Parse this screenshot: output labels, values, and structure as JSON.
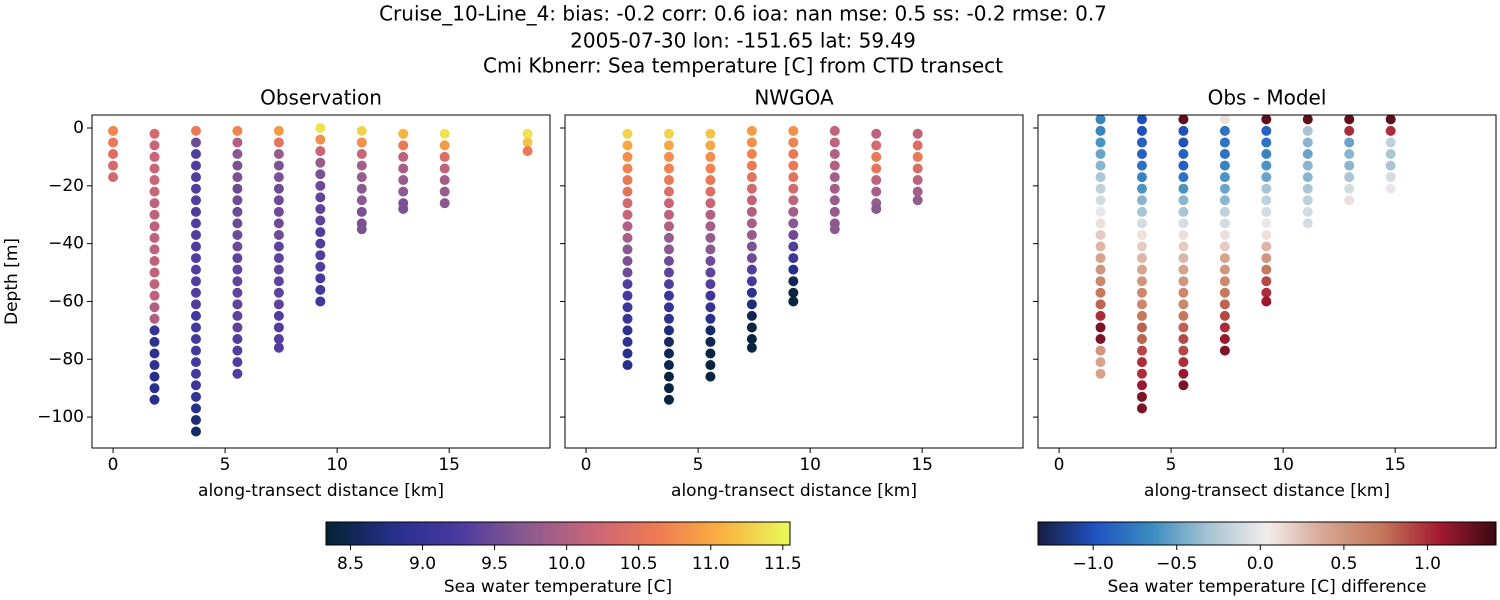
{
  "title": [
    "Cruise_10-Line_4: bias: -0.2  corr: 0.6  ioa: nan  mse: 0.5  ss: -0.2  rmse: 0.7",
    "2005-07-30 lon: -151.65 lat: 59.49",
    "Cmi Kbnerr: Sea temperature [C] from CTD transect"
  ],
  "chart_data": [
    {
      "type": "scatter",
      "title": "Observation",
      "xlabel": "along-transect distance [km]",
      "ylabel": "Depth [m]",
      "cmap": "thermal",
      "xlim": [
        -0.94,
        19.5
      ],
      "xticks": [
        0,
        5,
        10,
        15
      ],
      "ylim": [
        -110.7,
        4.5
      ],
      "yticks": [
        0,
        {
          "value": -20,
          "label": "−20"
        },
        {
          "value": -40,
          "label": "−40"
        },
        {
          "value": -60,
          "label": "−60"
        },
        {
          "value": -80,
          "label": "−80"
        },
        {
          "value": -100,
          "label": "−100"
        }
      ],
      "casts": [
        {
          "x": 0,
          "depth": [
            -1,
            -5,
            -9,
            -13,
            -17
          ],
          "values": [
            10.7,
            10.6,
            10.4,
            10.3,
            10.3
          ]
        },
        {
          "x": 1.85,
          "depth": [
            -2,
            -6,
            -10,
            -14,
            -18,
            -22,
            -26,
            -30,
            -34,
            -38,
            -42,
            -46,
            -50,
            -54,
            -58,
            -62,
            -66,
            -70,
            -74,
            -78,
            -82,
            -86,
            -90,
            -94
          ],
          "values": [
            10.3,
            10.2,
            10.2,
            10.2,
            10.2,
            10.2,
            10.1,
            10.1,
            10.1,
            10.1,
            10.1,
            10.1,
            10.1,
            10.1,
            10.1,
            10.0,
            10.0,
            9.0,
            8.9,
            8.9,
            8.9,
            8.8,
            8.8,
            8.8
          ]
        },
        {
          "x": 3.7,
          "depth": [
            -1,
            -5,
            -9,
            -13,
            -17,
            -21,
            -25,
            -29,
            -33,
            -37,
            -41,
            -45,
            -49,
            -53,
            -57,
            -61,
            -65,
            -69,
            -73,
            -77,
            -81,
            -85,
            -89,
            -93,
            -97,
            -101,
            -105
          ],
          "values": [
            10.6,
            9.5,
            9.3,
            9.3,
            9.3,
            9.3,
            9.3,
            9.3,
            9.3,
            9.3,
            9.3,
            9.3,
            9.3,
            9.3,
            9.3,
            9.3,
            9.2,
            9.2,
            9.2,
            9.2,
            9.2,
            9.2,
            9.1,
            9.0,
            8.8,
            8.7,
            8.6
          ]
        },
        {
          "x": 5.55,
          "depth": [
            -1,
            -5,
            -9,
            -13,
            -17,
            -21,
            -25,
            -29,
            -33,
            -37,
            -41,
            -45,
            -49,
            -53,
            -57,
            -61,
            -65,
            -69,
            -73,
            -77,
            -81,
            -85
          ],
          "values": [
            10.7,
            10.0,
            9.7,
            9.6,
            9.6,
            9.5,
            9.5,
            9.5,
            9.5,
            9.5,
            9.5,
            9.4,
            9.4,
            9.4,
            9.4,
            9.4,
            9.4,
            9.4,
            9.3,
            9.3,
            9.3,
            9.3
          ]
        },
        {
          "x": 7.4,
          "depth": [
            -1,
            -5,
            -9,
            -13,
            -17,
            -21,
            -25,
            -29,
            -33,
            -37,
            -41,
            -45,
            -49,
            -53,
            -57,
            -61,
            -65,
            -69,
            -73,
            -76
          ],
          "values": [
            10.9,
            10.5,
            9.8,
            9.6,
            9.6,
            9.5,
            9.5,
            9.5,
            9.5,
            9.5,
            9.4,
            9.4,
            9.4,
            9.4,
            9.4,
            9.4,
            9.3,
            9.3,
            9.3,
            9.3
          ]
        },
        {
          "x": 9.25,
          "depth": [
            0,
            -4,
            -8,
            -12,
            -16,
            -20,
            -24,
            -28,
            -32,
            -36,
            -40,
            -44,
            -48,
            -52,
            -56,
            -60
          ],
          "values": [
            11.4,
            10.8,
            10.2,
            9.8,
            9.6,
            9.5,
            9.4,
            9.4,
            9.4,
            9.3,
            9.3,
            9.3,
            9.3,
            9.2,
            9.2,
            9.1
          ]
        },
        {
          "x": 11.1,
          "depth": [
            -1,
            -5,
            -9,
            -13,
            -17,
            -21,
            -25,
            -29,
            -33,
            -35
          ],
          "values": [
            11.3,
            10.8,
            10.2,
            9.9,
            9.8,
            9.7,
            9.7,
            9.6,
            9.6,
            9.6
          ]
        },
        {
          "x": 12.95,
          "depth": [
            -2,
            -6,
            -10,
            -14,
            -18,
            -22,
            -26,
            -28
          ],
          "values": [
            11.1,
            10.6,
            10.1,
            9.9,
            9.8,
            9.7,
            9.6,
            9.6
          ]
        },
        {
          "x": 14.8,
          "depth": [
            -2,
            -6,
            -10,
            -14,
            -18,
            -22,
            -26
          ],
          "values": [
            11.4,
            10.9,
            10.4,
            10.1,
            9.9,
            9.8,
            9.7
          ]
        },
        {
          "x": 18.5,
          "depth": [
            -2,
            -5,
            -8
          ],
          "values": [
            11.4,
            11.2,
            10.6
          ]
        }
      ]
    },
    {
      "type": "scatter",
      "title": "NWGOA",
      "xlabel": "along-transect distance [km]",
      "cmap": "thermal",
      "xlim": [
        -0.94,
        19.5
      ],
      "xticks": [
        0,
        5,
        10,
        15
      ],
      "ylim": [
        -110.7,
        4.5
      ],
      "casts": [
        {
          "x": 1.85,
          "depth": [
            -2,
            -6,
            -10,
            -14,
            -18,
            -22,
            -26,
            -30,
            -34,
            -38,
            -42,
            -46,
            -50,
            -54,
            -58,
            -62,
            -66,
            -70,
            -74,
            -78,
            -82
          ],
          "values": [
            11.3,
            11.0,
            10.8,
            10.7,
            10.6,
            10.5,
            10.3,
            10.2,
            10.0,
            9.9,
            9.7,
            9.6,
            9.5,
            9.3,
            9.2,
            9.1,
            9.0,
            8.9,
            8.9,
            8.8,
            8.8
          ]
        },
        {
          "x": 3.7,
          "depth": [
            -2,
            -6,
            -10,
            -14,
            -18,
            -22,
            -26,
            -30,
            -34,
            -38,
            -42,
            -46,
            -50,
            -54,
            -58,
            -62,
            -66,
            -70,
            -74,
            -78,
            -82,
            -86,
            -90,
            -94
          ],
          "values": [
            11.3,
            11.0,
            10.8,
            10.7,
            10.6,
            10.4,
            10.2,
            10.1,
            10.0,
            9.8,
            9.7,
            9.5,
            9.4,
            9.3,
            9.1,
            9.0,
            8.9,
            8.7,
            8.6,
            8.5,
            8.5,
            8.4,
            8.4,
            8.4
          ]
        },
        {
          "x": 5.55,
          "depth": [
            -2,
            -6,
            -10,
            -14,
            -18,
            -22,
            -26,
            -30,
            -34,
            -38,
            -42,
            -46,
            -50,
            -54,
            -58,
            -62,
            -66,
            -70,
            -74,
            -78,
            -82,
            -86
          ],
          "values": [
            11.2,
            11.0,
            10.8,
            10.7,
            10.6,
            10.4,
            10.2,
            10.0,
            9.9,
            9.8,
            9.7,
            9.5,
            9.4,
            9.3,
            9.1,
            9.0,
            8.8,
            8.6,
            8.5,
            8.4,
            8.4,
            8.4
          ]
        },
        {
          "x": 7.4,
          "depth": [
            -1,
            -5,
            -9,
            -13,
            -17,
            -21,
            -25,
            -29,
            -33,
            -37,
            -41,
            -45,
            -49,
            -53,
            -57,
            -61,
            -65,
            -69,
            -73,
            -76
          ],
          "values": [
            10.9,
            10.8,
            10.7,
            10.6,
            10.5,
            10.3,
            10.1,
            10.0,
            9.9,
            9.8,
            9.6,
            9.5,
            9.3,
            9.2,
            8.9,
            8.7,
            8.5,
            8.4,
            8.4,
            8.4
          ]
        },
        {
          "x": 9.25,
          "depth": [
            -1,
            -5,
            -9,
            -13,
            -17,
            -21,
            -25,
            -29,
            -33,
            -37,
            -41,
            -45,
            -49,
            -53,
            -57,
            -60
          ],
          "values": [
            10.8,
            10.7,
            10.6,
            10.6,
            10.5,
            10.3,
            10.1,
            9.9,
            9.7,
            9.5,
            9.3,
            9.1,
            8.8,
            8.5,
            8.4,
            8.4
          ]
        },
        {
          "x": 11.1,
          "depth": [
            -1,
            -5,
            -9,
            -13,
            -17,
            -21,
            -25,
            -29,
            -33,
            -35
          ],
          "values": [
            10.1,
            10.1,
            10.0,
            10.0,
            9.9,
            9.9,
            9.8,
            9.8,
            9.7,
            9.7
          ]
        },
        {
          "x": 12.95,
          "depth": [
            -2,
            -6,
            -10,
            -14,
            -18,
            -22,
            -26,
            -28
          ],
          "values": [
            10.1,
            10.3,
            10.6,
            10.5,
            10.1,
            9.9,
            9.8,
            9.7
          ]
        },
        {
          "x": 14.8,
          "depth": [
            -2,
            -6,
            -10,
            -14,
            -18,
            -22,
            -25
          ],
          "values": [
            10.1,
            10.4,
            10.6,
            10.4,
            10.1,
            9.9,
            9.8
          ]
        }
      ]
    },
    {
      "type": "scatter",
      "title": "Obs - Model",
      "xlabel": "along-transect distance [km]",
      "cmap": "balance",
      "xlim": [
        -0.94,
        19.5
      ],
      "xticks": [
        0,
        5,
        10,
        15
      ],
      "ylim": [
        -110.7,
        4.5
      ],
      "casts": [
        {
          "x": 1.85,
          "depth": [
            3,
            -1,
            -5,
            -9,
            -13,
            -17,
            -21,
            -25,
            -29,
            -33,
            -37,
            -41,
            -45,
            -49,
            -53,
            -57,
            -61,
            -65,
            -69,
            -73,
            -77,
            -81,
            -85
          ],
          "values": [
            -0.7,
            -0.7,
            -0.6,
            -0.5,
            -0.4,
            -0.3,
            -0.2,
            -0.1,
            0.0,
            0.1,
            0.2,
            0.3,
            0.4,
            0.5,
            0.6,
            0.7,
            0.8,
            1.0,
            1.2,
            1.2,
            0.5,
            0.4,
            0.4
          ]
        },
        {
          "x": 3.7,
          "depth": [
            3,
            -1,
            -5,
            -9,
            -13,
            -17,
            -21,
            -25,
            -29,
            -33,
            -37,
            -41,
            -45,
            -49,
            -53,
            -57,
            -61,
            -65,
            -69,
            -73,
            -77,
            -81,
            -85,
            -89,
            -93,
            -97
          ],
          "values": [
            -1.0,
            -1.0,
            -0.9,
            -0.9,
            -0.8,
            -0.7,
            -0.6,
            -0.4,
            -0.3,
            -0.1,
            0.1,
            0.2,
            0.3,
            0.4,
            0.5,
            0.6,
            0.6,
            0.7,
            0.8,
            0.8,
            0.9,
            1.0,
            1.0,
            1.1,
            1.2,
            1.2
          ]
        },
        {
          "x": 5.55,
          "depth": [
            3,
            -1,
            -5,
            -9,
            -13,
            -17,
            -21,
            -25,
            -29,
            -33,
            -37,
            -41,
            -45,
            -49,
            -53,
            -57,
            -61,
            -65,
            -69,
            -73,
            -77,
            -81,
            -85,
            -89
          ],
          "values": [
            1.3,
            -1.0,
            -1.0,
            -0.9,
            -0.9,
            -0.8,
            -0.6,
            -0.4,
            -0.3,
            -0.1,
            0.1,
            0.2,
            0.3,
            0.4,
            0.5,
            0.6,
            0.6,
            0.7,
            0.8,
            0.9,
            0.9,
            1.0,
            1.1,
            1.2
          ]
        },
        {
          "x": 7.4,
          "depth": [
            3,
            -1,
            -5,
            -9,
            -13,
            -17,
            -21,
            -25,
            -29,
            -33,
            -37,
            -41,
            -45,
            -49,
            -53,
            -57,
            -61,
            -65,
            -69,
            -73,
            -77
          ],
          "values": [
            0.1,
            -0.8,
            -0.8,
            -0.8,
            -0.7,
            -0.6,
            -0.5,
            -0.4,
            -0.2,
            -0.1,
            0.1,
            0.2,
            0.4,
            0.5,
            0.6,
            0.7,
            0.8,
            0.9,
            1.0,
            1.1,
            1.2
          ]
        },
        {
          "x": 9.25,
          "depth": [
            3,
            -1,
            -5,
            -9,
            -13,
            -17,
            -21,
            -25,
            -29,
            -33,
            -37,
            -41,
            -45,
            -49,
            -53,
            -57,
            -60
          ],
          "values": [
            1.3,
            -0.9,
            -0.8,
            -0.7,
            -0.6,
            -0.5,
            -0.3,
            -0.2,
            -0.1,
            0.0,
            0.1,
            0.3,
            0.5,
            0.7,
            0.9,
            1.0,
            1.1
          ]
        },
        {
          "x": 11.1,
          "depth": [
            3,
            -1,
            -5,
            -9,
            -13,
            -17,
            -21,
            -25,
            -29,
            -33
          ],
          "values": [
            1.3,
            -0.3,
            -0.4,
            -0.5,
            -0.4,
            -0.4,
            -0.3,
            -0.2,
            -0.1,
            -0.1
          ]
        },
        {
          "x": 12.95,
          "depth": [
            3,
            -1,
            -5,
            -9,
            -13,
            -17,
            -21,
            -25
          ],
          "values": [
            1.3,
            1.0,
            -0.5,
            -0.4,
            -0.4,
            -0.3,
            -0.1,
            0.1
          ]
        },
        {
          "x": 14.8,
          "depth": [
            3,
            -1,
            -5,
            -9,
            -13,
            -17,
            -21
          ],
          "values": [
            1.3,
            1.0,
            -0.2,
            -0.3,
            -0.3,
            -0.1,
            0.0
          ]
        }
      ]
    }
  ],
  "colorbars": [
    {
      "label": "Sea water temperature [C]",
      "cmap": "thermal",
      "clim": [
        8.33,
        11.55
      ],
      "ticks": [
        8.5,
        {
          "value": 9,
          "label": "9.0"
        },
        9.5,
        {
          "value": 10,
          "label": "10.0"
        },
        10.5,
        {
          "value": 11,
          "label": "11.0"
        },
        11.5
      ]
    },
    {
      "label": "Sea water temperature [C] difference",
      "cmap": "balance",
      "clim": [
        -1.33,
        1.41
      ],
      "ticks": [
        {
          "value": -1,
          "label": "−1.0"
        },
        {
          "value": -0.5,
          "label": "−0.5"
        },
        {
          "value": 0,
          "label": "0.0"
        },
        0.5,
        {
          "value": 1,
          "label": "1.0"
        }
      ]
    }
  ]
}
